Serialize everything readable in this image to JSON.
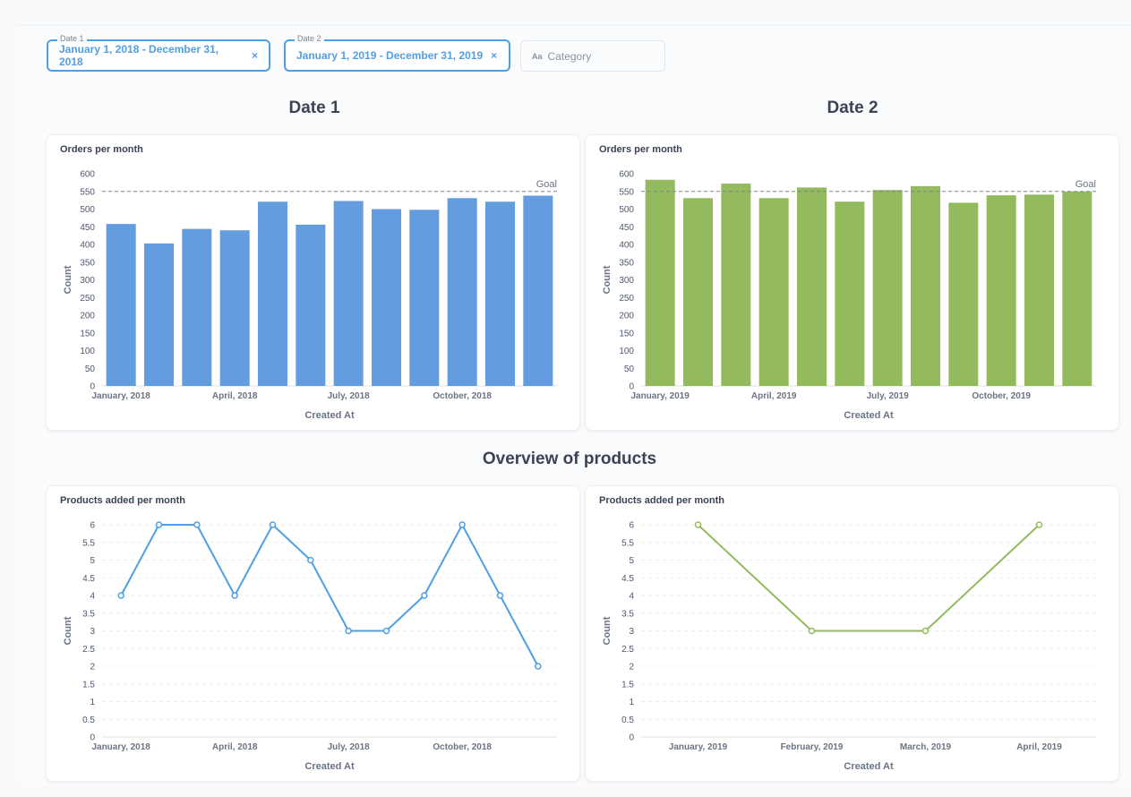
{
  "filters": {
    "date1": {
      "label": "Date 1",
      "value": "January 1, 2018 - December 31, 2018",
      "close": "×"
    },
    "date2": {
      "label": "Date 2",
      "value": "January 1, 2019 - December 31, 2019",
      "close": "×"
    },
    "category": {
      "icon": "Aa",
      "placeholder": "Category"
    }
  },
  "headings": {
    "date1": "Date 1",
    "date2": "Date 2",
    "overview": "Overview of products"
  },
  "colors": {
    "blue": "#509ee3",
    "bar_blue": "#649ddf",
    "green": "#93bb5d"
  },
  "charts": [
    {
      "title": "Orders per month",
      "chart_data": {
        "type": "bar",
        "color": "#649ddf",
        "values": [
          458,
          403,
          444,
          440,
          521,
          456,
          523,
          500,
          498,
          531,
          521,
          538
        ],
        "xticks": [
          "January, 2018",
          "April, 2018",
          "July, 2018",
          "October, 2018"
        ],
        "xtick_index": [
          0,
          3,
          6,
          9
        ],
        "yticks": [
          0,
          50,
          100,
          150,
          200,
          250,
          300,
          350,
          400,
          450,
          500,
          550,
          600
        ],
        "ylim": [
          0,
          600
        ],
        "goal": 550,
        "goal_label": "Goal",
        "xlabel": "Created At",
        "ylabel": "Count"
      }
    },
    {
      "title": "Orders per month",
      "chart_data": {
        "type": "bar",
        "color": "#93bb5d",
        "values": [
          583,
          531,
          572,
          531,
          561,
          521,
          554,
          565,
          518,
          539,
          541,
          550
        ],
        "xticks": [
          "January, 2019",
          "April, 2019",
          "July, 2019",
          "October, 2019"
        ],
        "xtick_index": [
          0,
          3,
          6,
          9
        ],
        "yticks": [
          0,
          50,
          100,
          150,
          200,
          250,
          300,
          350,
          400,
          450,
          500,
          550,
          600
        ],
        "ylim": [
          0,
          600
        ],
        "goal": 550,
        "goal_label": "Goal",
        "xlabel": "Created At",
        "ylabel": "Count"
      }
    },
    {
      "title": "Products added per month",
      "chart_data": {
        "type": "line",
        "color": "#509ee3",
        "values": [
          4,
          6,
          6,
          4,
          6,
          5,
          3,
          3,
          4,
          6,
          4,
          2
        ],
        "xticks": [
          "January, 2018",
          "April, 2018",
          "July, 2018",
          "October, 2018"
        ],
        "xtick_index": [
          0,
          3,
          6,
          9
        ],
        "yticks": [
          0,
          0.5,
          1,
          1.5,
          2,
          2.5,
          3,
          3.5,
          4,
          4.5,
          5,
          5.5,
          6
        ],
        "ylim": [
          0,
          6
        ],
        "xlabel": "Created At",
        "ylabel": "Count"
      }
    },
    {
      "title": "Products added per month",
      "chart_data": {
        "type": "line",
        "color": "#93bb5d",
        "values": [
          6,
          3,
          3,
          6
        ],
        "xticks": [
          "January, 2019",
          "February, 2019",
          "March, 2019",
          "April, 2019"
        ],
        "xtick_index": [
          0,
          1,
          2,
          3
        ],
        "yticks": [
          0,
          0.5,
          1,
          1.5,
          2,
          2.5,
          3,
          3.5,
          4,
          4.5,
          5,
          5.5,
          6
        ],
        "ylim": [
          0,
          6
        ],
        "xlabel": "Created At",
        "ylabel": "Count"
      }
    }
  ]
}
